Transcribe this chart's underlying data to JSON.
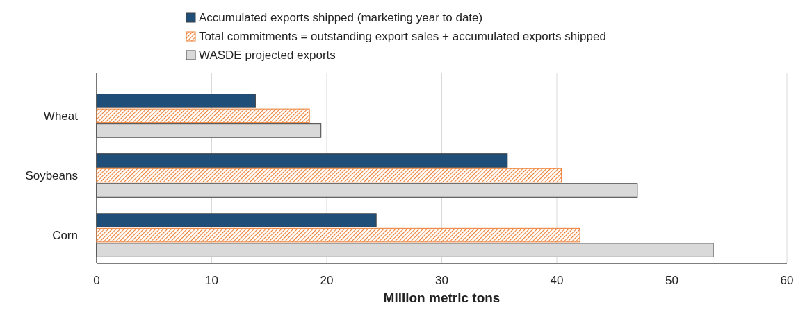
{
  "chart_data": {
    "type": "bar",
    "orientation": "horizontal",
    "categories": [
      "Wheat",
      "Soybeans",
      "Corn"
    ],
    "series": [
      {
        "name": "Accumulated exports shipped (marketing year to date)",
        "color": "#1f4e79",
        "values": [
          13.8,
          35.7,
          24.3
        ]
      },
      {
        "name": "Total commitments = outstanding export sales + accumulated exports shipped",
        "color": "#ed7d31",
        "values": [
          18.5,
          40.4,
          42.0
        ]
      },
      {
        "name": "WASDE projected exports",
        "color": "#d9d9d9",
        "values": [
          19.5,
          47.0,
          53.6
        ]
      }
    ],
    "xlim": [
      0,
      60
    ],
    "xticks": [
      0,
      10,
      20,
      30,
      40,
      50,
      60
    ],
    "xlabel": "Million metric tons",
    "grid": "x",
    "legend": "top"
  }
}
